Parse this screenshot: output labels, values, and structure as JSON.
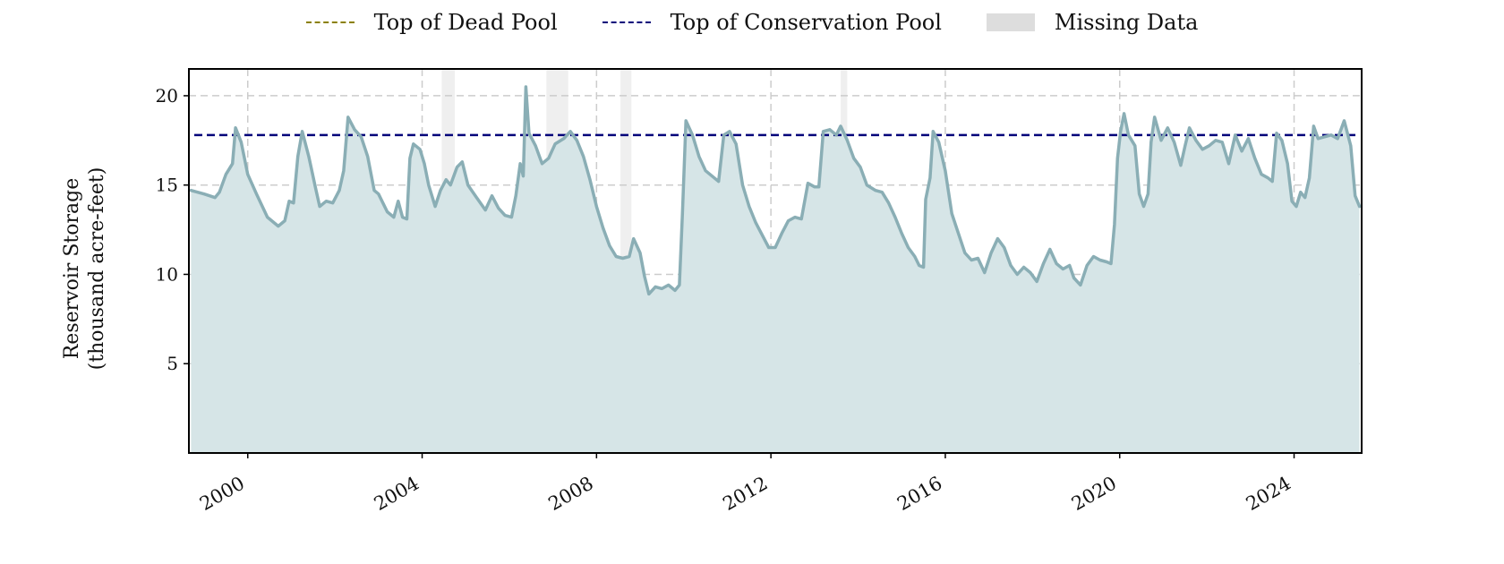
{
  "chart_data": {
    "type": "area",
    "title": "",
    "ylabel_line1": "Reservoir Storage",
    "ylabel_line2": "(thousand acre-feet)",
    "xlabel": "",
    "xlim": [
      1998.65,
      2025.55
    ],
    "ylim": [
      0,
      21.5
    ],
    "x_ticks": [
      2000,
      2004,
      2008,
      2012,
      2016,
      2020,
      2024
    ],
    "y_ticks": [
      5,
      10,
      15,
      20
    ],
    "grid": true,
    "legend_placement": "top-center",
    "legend": [
      {
        "label": "Top of Dead Pool",
        "style": "dashed",
        "color": "#8b8000"
      },
      {
        "label": "Top of Conservation Pool",
        "style": "dashed",
        "color": "#00007a"
      },
      {
        "label": "Missing Data",
        "style": "box",
        "color": "#dddddd"
      }
    ],
    "reference_lines": [
      {
        "name": "Top of Conservation Pool",
        "y": 17.8,
        "color": "#00007a"
      }
    ],
    "missing_ranges": [
      [
        2004.45,
        2004.75
      ],
      [
        2006.85,
        2007.35
      ],
      [
        2008.55,
        2008.8
      ],
      [
        2013.6,
        2013.75
      ]
    ],
    "series": [
      {
        "color": "#8aaeb5",
        "fill": "#d6e5e7",
        "points": [
          [
            1998.7,
            14.7
          ],
          [
            1999.0,
            14.5
          ],
          [
            1999.25,
            14.3
          ],
          [
            1999.35,
            14.6
          ],
          [
            1999.5,
            15.6
          ],
          [
            1999.65,
            16.2
          ],
          [
            1999.72,
            18.2
          ],
          [
            1999.85,
            17.4
          ],
          [
            2000.0,
            15.6
          ],
          [
            2000.2,
            14.5
          ],
          [
            2000.45,
            13.2
          ],
          [
            2000.7,
            12.7
          ],
          [
            2000.85,
            13.0
          ],
          [
            2000.95,
            14.1
          ],
          [
            2001.05,
            14.0
          ],
          [
            2001.15,
            16.6
          ],
          [
            2001.25,
            18.0
          ],
          [
            2001.4,
            16.6
          ],
          [
            2001.55,
            14.9
          ],
          [
            2001.65,
            13.8
          ],
          [
            2001.8,
            14.1
          ],
          [
            2001.95,
            14.0
          ],
          [
            2002.1,
            14.7
          ],
          [
            2002.2,
            15.8
          ],
          [
            2002.3,
            18.8
          ],
          [
            2002.45,
            18.1
          ],
          [
            2002.6,
            17.7
          ],
          [
            2002.75,
            16.6
          ],
          [
            2002.9,
            14.7
          ],
          [
            2003.0,
            14.5
          ],
          [
            2003.2,
            13.5
          ],
          [
            2003.35,
            13.2
          ],
          [
            2003.45,
            14.1
          ],
          [
            2003.55,
            13.2
          ],
          [
            2003.65,
            13.1
          ],
          [
            2003.72,
            16.5
          ],
          [
            2003.8,
            17.3
          ],
          [
            2003.95,
            17.0
          ],
          [
            2004.05,
            16.2
          ],
          [
            2004.15,
            15.0
          ],
          [
            2004.3,
            13.8
          ],
          [
            2004.42,
            14.7
          ],
          [
            2004.55,
            15.3
          ],
          [
            2004.65,
            15.0
          ],
          [
            2004.8,
            16.0
          ],
          [
            2004.92,
            16.3
          ],
          [
            2005.05,
            15.0
          ],
          [
            2005.25,
            14.3
          ],
          [
            2005.45,
            13.6
          ],
          [
            2005.6,
            14.4
          ],
          [
            2005.75,
            13.7
          ],
          [
            2005.9,
            13.3
          ],
          [
            2006.05,
            13.2
          ],
          [
            2006.15,
            14.4
          ],
          [
            2006.25,
            16.2
          ],
          [
            2006.32,
            15.5
          ],
          [
            2006.38,
            20.5
          ],
          [
            2006.45,
            17.9
          ],
          [
            2006.6,
            17.2
          ],
          [
            2006.75,
            16.2
          ],
          [
            2006.9,
            16.5
          ],
          [
            2007.05,
            17.3
          ],
          [
            2007.25,
            17.6
          ],
          [
            2007.4,
            18.0
          ],
          [
            2007.55,
            17.5
          ],
          [
            2007.7,
            16.6
          ],
          [
            2007.85,
            15.3
          ],
          [
            2008.0,
            13.8
          ],
          [
            2008.15,
            12.6
          ],
          [
            2008.3,
            11.6
          ],
          [
            2008.45,
            11.0
          ],
          [
            2008.6,
            10.9
          ],
          [
            2008.75,
            11.0
          ],
          [
            2008.85,
            12.0
          ],
          [
            2009.0,
            11.2
          ],
          [
            2009.1,
            9.9
          ],
          [
            2009.2,
            8.9
          ],
          [
            2009.35,
            9.3
          ],
          [
            2009.5,
            9.2
          ],
          [
            2009.65,
            9.4
          ],
          [
            2009.8,
            9.1
          ],
          [
            2009.9,
            9.4
          ],
          [
            2009.97,
            13.4
          ],
          [
            2010.05,
            18.6
          ],
          [
            2010.2,
            17.8
          ],
          [
            2010.35,
            16.6
          ],
          [
            2010.5,
            15.8
          ],
          [
            2010.65,
            15.5
          ],
          [
            2010.8,
            15.2
          ],
          [
            2010.92,
            17.8
          ],
          [
            2011.05,
            18.0
          ],
          [
            2011.2,
            17.3
          ],
          [
            2011.35,
            15.0
          ],
          [
            2011.5,
            13.8
          ],
          [
            2011.65,
            12.9
          ],
          [
            2011.8,
            12.2
          ],
          [
            2011.95,
            11.5
          ],
          [
            2012.1,
            11.5
          ],
          [
            2012.25,
            12.3
          ],
          [
            2012.4,
            13.0
          ],
          [
            2012.55,
            13.2
          ],
          [
            2012.7,
            13.1
          ],
          [
            2012.85,
            15.1
          ],
          [
            2013.0,
            14.9
          ],
          [
            2013.1,
            14.9
          ],
          [
            2013.2,
            18.0
          ],
          [
            2013.35,
            18.1
          ],
          [
            2013.5,
            17.8
          ],
          [
            2013.6,
            18.3
          ],
          [
            2013.75,
            17.5
          ],
          [
            2013.9,
            16.5
          ],
          [
            2014.05,
            16.0
          ],
          [
            2014.2,
            15.0
          ],
          [
            2014.4,
            14.7
          ],
          [
            2014.55,
            14.6
          ],
          [
            2014.7,
            14.0
          ],
          [
            2014.85,
            13.2
          ],
          [
            2015.0,
            12.3
          ],
          [
            2015.15,
            11.5
          ],
          [
            2015.3,
            11.0
          ],
          [
            2015.4,
            10.5
          ],
          [
            2015.5,
            10.4
          ],
          [
            2015.55,
            14.2
          ],
          [
            2015.65,
            15.4
          ],
          [
            2015.72,
            18.0
          ],
          [
            2015.85,
            17.4
          ],
          [
            2016.0,
            15.8
          ],
          [
            2016.15,
            13.4
          ],
          [
            2016.3,
            12.3
          ],
          [
            2016.45,
            11.2
          ],
          [
            2016.6,
            10.8
          ],
          [
            2016.75,
            10.9
          ],
          [
            2016.9,
            10.1
          ],
          [
            2017.05,
            11.2
          ],
          [
            2017.2,
            12.0
          ],
          [
            2017.35,
            11.5
          ],
          [
            2017.5,
            10.5
          ],
          [
            2017.65,
            10.0
          ],
          [
            2017.8,
            10.4
          ],
          [
            2017.95,
            10.1
          ],
          [
            2018.1,
            9.6
          ],
          [
            2018.25,
            10.6
          ],
          [
            2018.4,
            11.4
          ],
          [
            2018.55,
            10.6
          ],
          [
            2018.7,
            10.3
          ],
          [
            2018.85,
            10.5
          ],
          [
            2018.95,
            9.8
          ],
          [
            2019.1,
            9.4
          ],
          [
            2019.25,
            10.5
          ],
          [
            2019.4,
            11.0
          ],
          [
            2019.55,
            10.8
          ],
          [
            2019.7,
            10.7
          ],
          [
            2019.8,
            10.6
          ],
          [
            2019.88,
            12.8
          ],
          [
            2019.95,
            16.5
          ],
          [
            2020.02,
            18.0
          ],
          [
            2020.1,
            19.0
          ],
          [
            2020.2,
            17.8
          ],
          [
            2020.35,
            17.2
          ],
          [
            2020.45,
            14.5
          ],
          [
            2020.55,
            13.8
          ],
          [
            2020.65,
            14.5
          ],
          [
            2020.72,
            17.4
          ],
          [
            2020.8,
            18.8
          ],
          [
            2020.95,
            17.5
          ],
          [
            2021.1,
            18.2
          ],
          [
            2021.25,
            17.4
          ],
          [
            2021.4,
            16.1
          ],
          [
            2021.5,
            17.2
          ],
          [
            2021.6,
            18.2
          ],
          [
            2021.75,
            17.5
          ],
          [
            2021.9,
            17.0
          ],
          [
            2022.05,
            17.2
          ],
          [
            2022.2,
            17.5
          ],
          [
            2022.35,
            17.4
          ],
          [
            2022.5,
            16.2
          ],
          [
            2022.65,
            17.8
          ],
          [
            2022.8,
            16.9
          ],
          [
            2022.95,
            17.6
          ],
          [
            2023.1,
            16.5
          ],
          [
            2023.25,
            15.6
          ],
          [
            2023.4,
            15.4
          ],
          [
            2023.5,
            15.2
          ],
          [
            2023.6,
            17.9
          ],
          [
            2023.72,
            17.5
          ],
          [
            2023.85,
            16.2
          ],
          [
            2023.95,
            14.1
          ],
          [
            2024.05,
            13.8
          ],
          [
            2024.15,
            14.6
          ],
          [
            2024.25,
            14.3
          ],
          [
            2024.35,
            15.4
          ],
          [
            2024.45,
            18.3
          ],
          [
            2024.55,
            17.6
          ],
          [
            2024.7,
            17.7
          ],
          [
            2024.85,
            17.8
          ],
          [
            2025.0,
            17.6
          ],
          [
            2025.15,
            18.6
          ],
          [
            2025.3,
            17.2
          ],
          [
            2025.4,
            14.4
          ],
          [
            2025.5,
            13.8
          ]
        ]
      }
    ]
  }
}
